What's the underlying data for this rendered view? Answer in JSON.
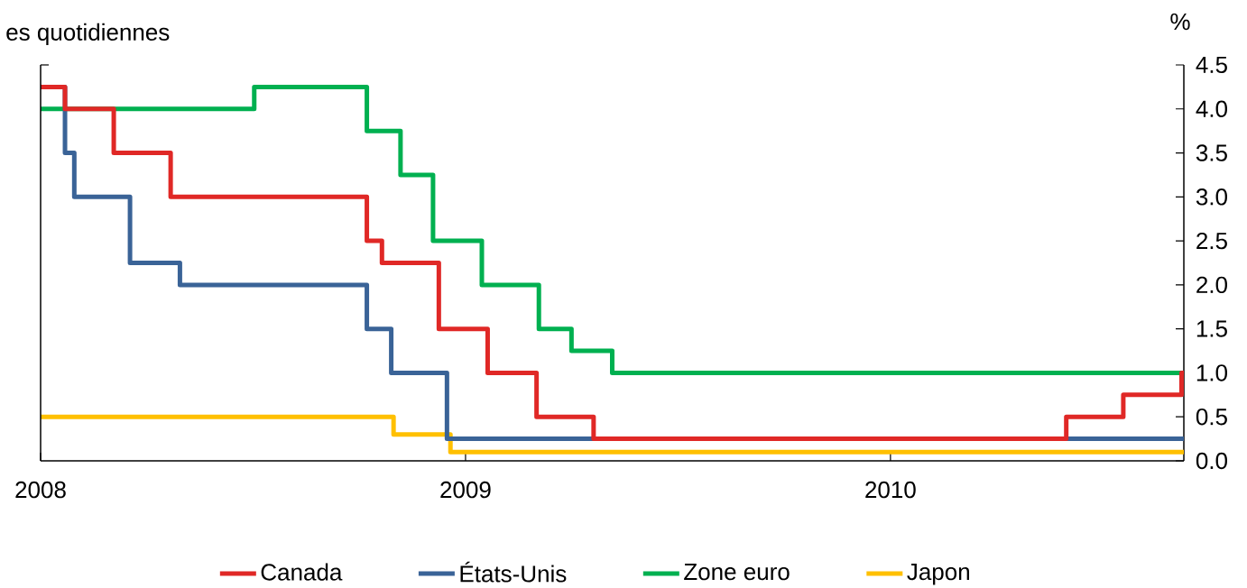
{
  "chart_data": {
    "type": "step",
    "subtitle": "es quotidiennes",
    "ylabel": "%",
    "xlim": [
      "2008-01-01",
      "2010-09-10"
    ],
    "xticks": [
      "2008",
      "2009",
      "2010"
    ],
    "ylim": [
      0,
      4.5
    ],
    "yticks": [
      {
        "value": 0,
        "label": "0.0"
      },
      {
        "value": 0.5,
        "label": "0.5"
      },
      {
        "value": 1,
        "label": "1.0"
      },
      {
        "value": 1.5,
        "label": "1.5"
      },
      {
        "value": 2,
        "label": "2.0"
      },
      {
        "value": 2.5,
        "label": "2.5"
      },
      {
        "value": 3,
        "label": "3.0"
      },
      {
        "value": 3.5,
        "label": "3.5"
      },
      {
        "value": 4,
        "label": "4.0"
      },
      {
        "value": 4.5,
        "label": "4.5"
      }
    ],
    "grid": false,
    "legend": "bottom",
    "series": [
      {
        "name": "Canada",
        "color": "#e02826",
        "x": [
          "2008-01-01",
          "2008-01-22",
          "2008-03-04",
          "2008-04-22",
          "2008-10-08",
          "2008-10-21",
          "2008-12-09",
          "2009-01-20",
          "2009-03-03",
          "2009-04-21",
          "2010-06-01",
          "2010-07-20",
          "2010-09-08",
          "2010-09-10"
        ],
        "values": [
          4.25,
          4.0,
          3.5,
          3.0,
          2.5,
          2.25,
          1.5,
          1.0,
          0.5,
          0.25,
          0.5,
          0.75,
          1.0,
          1.0
        ]
      },
      {
        "name": "États-Unis",
        "color": "#3a6397",
        "x": [
          "2008-01-01",
          "2008-01-22",
          "2008-01-30",
          "2008-03-18",
          "2008-04-30",
          "2008-10-08",
          "2008-10-29",
          "2008-12-16",
          "2010-09-10"
        ],
        "values": [
          4.25,
          3.5,
          3.0,
          2.25,
          2.0,
          1.5,
          1.0,
          0.25,
          0.25
        ]
      },
      {
        "name": "Zone euro",
        "color": "#00b050",
        "x": [
          "2008-01-01",
          "2008-07-03",
          "2008-10-08",
          "2008-11-06",
          "2008-12-04",
          "2009-01-15",
          "2009-03-05",
          "2009-04-02",
          "2009-05-07",
          "2010-09-10"
        ],
        "values": [
          4.0,
          4.25,
          3.75,
          3.25,
          2.5,
          2.0,
          1.5,
          1.25,
          1.0,
          1.0
        ]
      },
      {
        "name": "Japon",
        "color": "#ffc000",
        "x": [
          "2008-01-01",
          "2008-10-31",
          "2008-12-19",
          "2010-09-10"
        ],
        "values": [
          0.5,
          0.3,
          0.1,
          0.1
        ]
      }
    ]
  }
}
